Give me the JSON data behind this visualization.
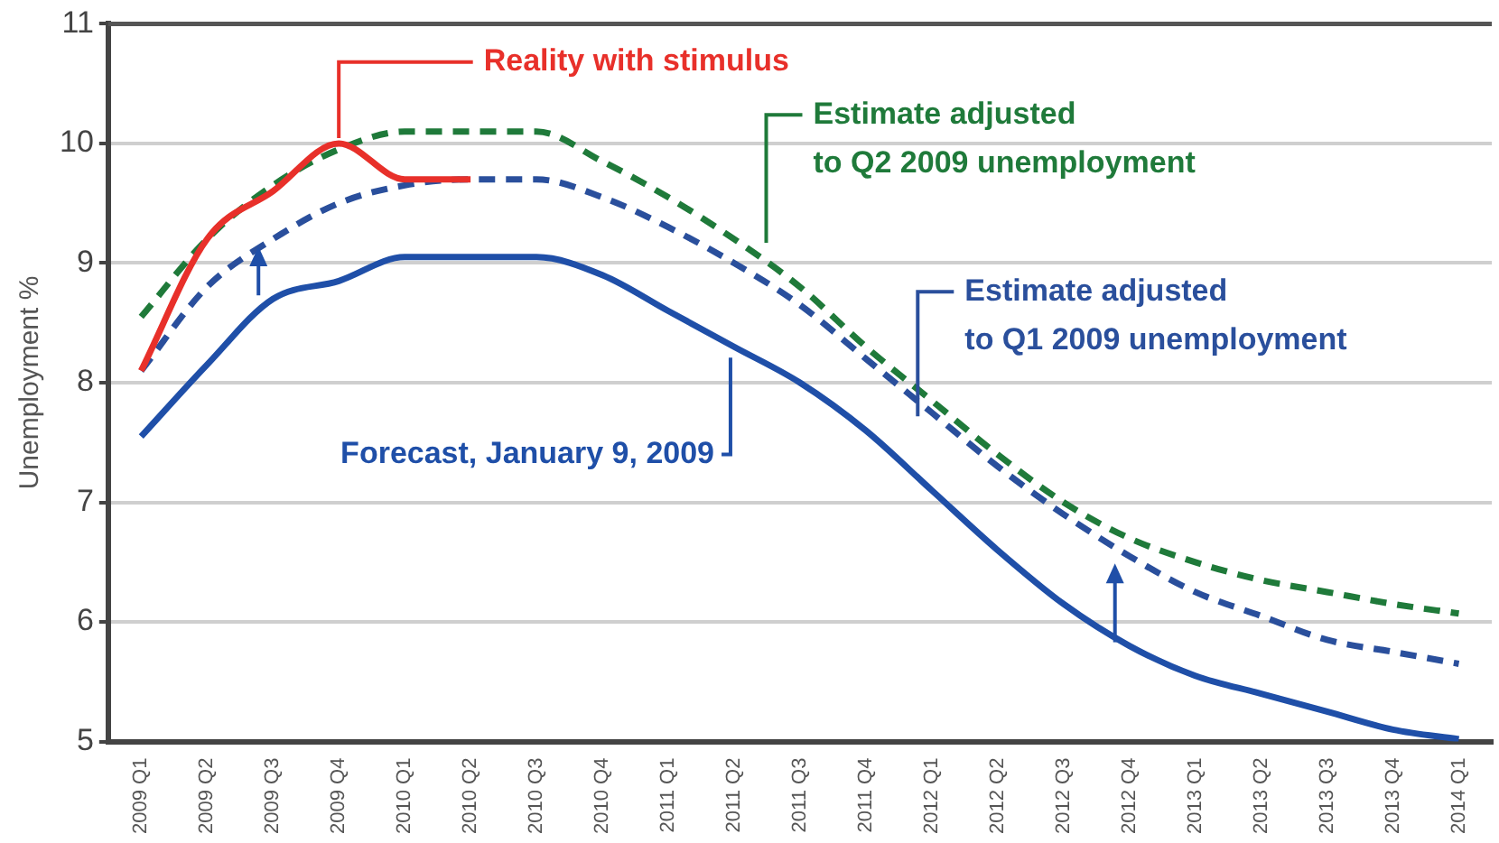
{
  "chart_data": {
    "type": "line",
    "ylabel": "Unemployment %",
    "categories": [
      "2009 Q1",
      "2009 Q2",
      "2009 Q3",
      "2009 Q4",
      "2010 Q1",
      "2010 Q2",
      "2010 Q3",
      "2010 Q4",
      "2011 Q1",
      "2011 Q2",
      "2011 Q3",
      "2011 Q4",
      "2012 Q1",
      "2012 Q2",
      "2012 Q3",
      "2012 Q4",
      "2013 Q1",
      "2013 Q2",
      "2013 Q3",
      "2013 Q4",
      "2014 Q1"
    ],
    "series": [
      {
        "name": "Reality with stimulus",
        "color": "#e8302a",
        "line_style": "solid",
        "values": [
          8.1,
          9.2,
          9.6,
          10.0,
          9.7,
          9.7,
          null,
          null,
          null,
          null,
          null,
          null,
          null,
          null,
          null,
          null,
          null,
          null,
          null,
          null,
          null
        ]
      },
      {
        "name": "Estimate adjusted\nto Q2 2009 unemployment",
        "color": "#1f7a3a",
        "line_style": "dashed",
        "values": [
          8.55,
          9.2,
          9.65,
          9.95,
          10.1,
          10.1,
          10.1,
          9.85,
          9.55,
          9.2,
          8.8,
          8.3,
          7.85,
          7.4,
          7.0,
          6.7,
          6.5,
          6.35,
          6.25,
          6.15,
          6.07
        ]
      },
      {
        "name": "Estimate adjusted\nto Q1 2009 unemployment",
        "color": "#2a4f9c",
        "line_style": "dashed",
        "values": [
          8.1,
          8.8,
          9.2,
          9.5,
          9.65,
          9.7,
          9.7,
          9.55,
          9.3,
          9.0,
          8.65,
          8.2,
          7.75,
          7.3,
          6.9,
          6.55,
          6.25,
          6.05,
          5.85,
          5.75,
          5.65
        ]
      },
      {
        "name": "Forecast, January 9, 2009",
        "color": "#1f4fa8",
        "line_style": "solid",
        "values": [
          7.55,
          8.15,
          8.7,
          8.85,
          9.05,
          9.05,
          9.05,
          8.9,
          8.6,
          8.3,
          8.0,
          7.6,
          7.1,
          6.6,
          6.15,
          5.8,
          5.55,
          5.4,
          5.25,
          5.1,
          5.02
        ]
      }
    ],
    "ylim": [
      5,
      11
    ],
    "yticks": [
      5,
      6,
      7,
      8,
      9,
      10,
      11
    ],
    "grid": "y",
    "legend": false,
    "marker": "none"
  }
}
